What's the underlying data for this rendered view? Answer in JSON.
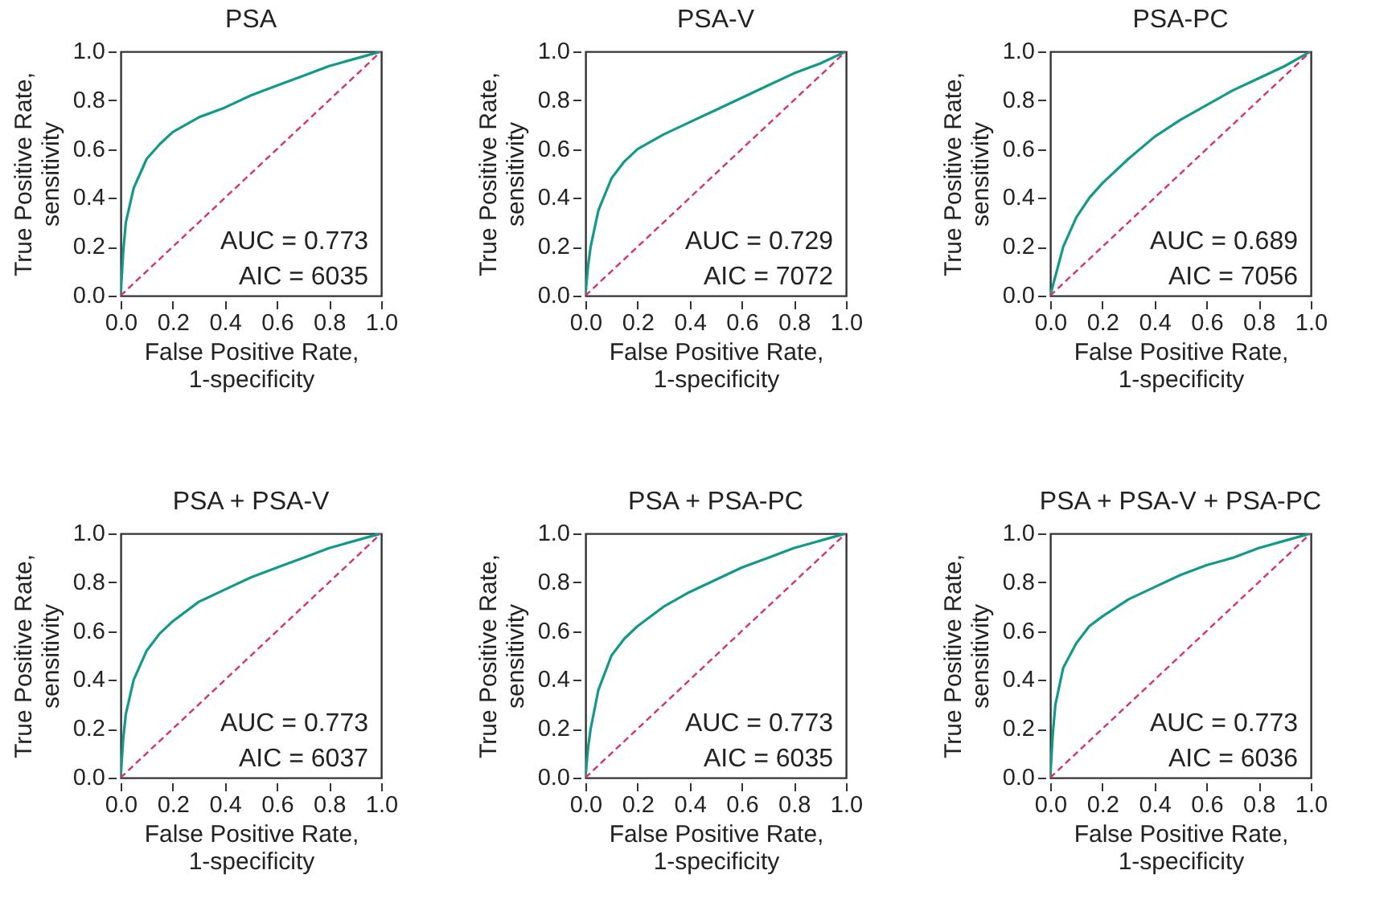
{
  "chart_data": [
    {
      "type": "line",
      "title": "PSA",
      "xlabel": "False Positive Rate,\n1-specificity",
      "ylabel": "True Positive Rate,\nsensitivity",
      "xlim": [
        0,
        1
      ],
      "ylim": [
        0,
        1
      ],
      "xticks": [
        {
          "value": 0,
          "label": "0.0"
        },
        {
          "value": 0.2,
          "label": "0.2"
        },
        {
          "value": 0.4,
          "label": "0.4"
        },
        {
          "value": 0.6,
          "label": "0.6"
        },
        {
          "value": 0.8,
          "label": "0.8"
        },
        {
          "value": 1,
          "label": "1.0"
        }
      ],
      "yticks": [
        {
          "value": 0,
          "label": "0.0"
        },
        {
          "value": 0.2,
          "label": "0.2"
        },
        {
          "value": 0.4,
          "label": "0.4"
        },
        {
          "value": 0.6,
          "label": "0.6"
        },
        {
          "value": 0.8,
          "label": "0.8"
        },
        {
          "value": 1,
          "label": "1.0"
        }
      ],
      "series": [
        {
          "type": "line",
          "color": "#13998a",
          "x": [
            0,
            0.01,
            0.02,
            0.05,
            0.1,
            0.15,
            0.2,
            0.3,
            0.4,
            0.5,
            0.6,
            0.7,
            0.8,
            0.9,
            1
          ],
          "values": [
            0,
            0.18,
            0.3,
            0.44,
            0.56,
            0.62,
            0.67,
            0.73,
            0.77,
            0.82,
            0.86,
            0.9,
            0.94,
            0.97,
            1
          ]
        },
        {
          "type": "line",
          "color": "#d6336c",
          "line_style": "dashed",
          "x": [
            0,
            1
          ],
          "values": [
            0,
            1
          ]
        }
      ],
      "annotations": [
        "AUC = 0.773",
        "AIC = 6035"
      ]
    },
    {
      "type": "line",
      "title": "PSA-V",
      "xlabel": "False Positive Rate,\n1-specificity",
      "ylabel": "True Positive Rate,\nsensitivity",
      "xlim": [
        0,
        1
      ],
      "ylim": [
        0,
        1
      ],
      "xticks": [
        {
          "value": 0,
          "label": "0.0"
        },
        {
          "value": 0.2,
          "label": "0.2"
        },
        {
          "value": 0.4,
          "label": "0.4"
        },
        {
          "value": 0.6,
          "label": "0.6"
        },
        {
          "value": 0.8,
          "label": "0.8"
        },
        {
          "value": 1,
          "label": "1.0"
        }
      ],
      "yticks": [
        {
          "value": 0,
          "label": "0.0"
        },
        {
          "value": 0.2,
          "label": "0.2"
        },
        {
          "value": 0.4,
          "label": "0.4"
        },
        {
          "value": 0.6,
          "label": "0.6"
        },
        {
          "value": 0.8,
          "label": "0.8"
        },
        {
          "value": 1,
          "label": "1.0"
        }
      ],
      "series": [
        {
          "type": "line",
          "color": "#13998a",
          "x": [
            0,
            0.01,
            0.02,
            0.05,
            0.1,
            0.15,
            0.2,
            0.3,
            0.4,
            0.5,
            0.6,
            0.7,
            0.8,
            0.9,
            1
          ],
          "values": [
            0,
            0.12,
            0.2,
            0.35,
            0.48,
            0.55,
            0.6,
            0.66,
            0.71,
            0.76,
            0.81,
            0.86,
            0.91,
            0.95,
            1
          ]
        },
        {
          "type": "line",
          "color": "#d6336c",
          "line_style": "dashed",
          "x": [
            0,
            1
          ],
          "values": [
            0,
            1
          ]
        }
      ],
      "annotations": [
        "AUC = 0.729",
        "AIC = 7072"
      ]
    },
    {
      "type": "line",
      "title": "PSA-PC",
      "xlabel": "False Positive Rate,\n1-specificity",
      "ylabel": "True Positive Rate,\nsensitivity",
      "xlim": [
        0,
        1
      ],
      "ylim": [
        0,
        1
      ],
      "xticks": [
        {
          "value": 0,
          "label": "0.0"
        },
        {
          "value": 0.2,
          "label": "0.2"
        },
        {
          "value": 0.4,
          "label": "0.4"
        },
        {
          "value": 0.6,
          "label": "0.6"
        },
        {
          "value": 0.8,
          "label": "0.8"
        },
        {
          "value": 1,
          "label": "1.0"
        }
      ],
      "yticks": [
        {
          "value": 0,
          "label": "0.0"
        },
        {
          "value": 0.2,
          "label": "0.2"
        },
        {
          "value": 0.4,
          "label": "0.4"
        },
        {
          "value": 0.6,
          "label": "0.6"
        },
        {
          "value": 0.8,
          "label": "0.8"
        },
        {
          "value": 1,
          "label": "1.0"
        }
      ],
      "series": [
        {
          "type": "line",
          "color": "#13998a",
          "x": [
            0,
            0.05,
            0.1,
            0.15,
            0.2,
            0.3,
            0.4,
            0.5,
            0.6,
            0.7,
            0.8,
            0.9,
            1
          ],
          "values": [
            0,
            0.2,
            0.32,
            0.4,
            0.46,
            0.56,
            0.65,
            0.72,
            0.78,
            0.84,
            0.89,
            0.94,
            1
          ]
        },
        {
          "type": "line",
          "color": "#d6336c",
          "line_style": "dashed",
          "x": [
            0,
            1
          ],
          "values": [
            0,
            1
          ]
        }
      ],
      "annotations": [
        "AUC = 0.689",
        "AIC = 7056"
      ]
    },
    {
      "type": "line",
      "title": "PSA + PSA-V",
      "xlabel": "False Positive Rate,\n1-specificity",
      "ylabel": "True Positive Rate,\nsensitivity",
      "xlim": [
        0,
        1
      ],
      "ylim": [
        0,
        1
      ],
      "xticks": [
        {
          "value": 0,
          "label": "0.0"
        },
        {
          "value": 0.2,
          "label": "0.2"
        },
        {
          "value": 0.4,
          "label": "0.4"
        },
        {
          "value": 0.6,
          "label": "0.6"
        },
        {
          "value": 0.8,
          "label": "0.8"
        },
        {
          "value": 1,
          "label": "1.0"
        }
      ],
      "yticks": [
        {
          "value": 0,
          "label": "0.0"
        },
        {
          "value": 0.2,
          "label": "0.2"
        },
        {
          "value": 0.4,
          "label": "0.4"
        },
        {
          "value": 0.6,
          "label": "0.6"
        },
        {
          "value": 0.8,
          "label": "0.8"
        },
        {
          "value": 1,
          "label": "1.0"
        }
      ],
      "series": [
        {
          "type": "line",
          "color": "#13998a",
          "x": [
            0,
            0.01,
            0.02,
            0.05,
            0.1,
            0.15,
            0.2,
            0.3,
            0.4,
            0.5,
            0.6,
            0.7,
            0.8,
            0.9,
            1
          ],
          "values": [
            0,
            0.16,
            0.26,
            0.4,
            0.52,
            0.59,
            0.64,
            0.72,
            0.77,
            0.82,
            0.86,
            0.9,
            0.94,
            0.97,
            1
          ]
        },
        {
          "type": "line",
          "color": "#d6336c",
          "line_style": "dashed",
          "x": [
            0,
            1
          ],
          "values": [
            0,
            1
          ]
        }
      ],
      "annotations": [
        "AUC = 0.773",
        "AIC = 6037"
      ]
    },
    {
      "type": "line",
      "title": "PSA + PSA-PC",
      "xlabel": "False Positive Rate,\n1-specificity",
      "ylabel": "True Positive Rate,\nsensitivity",
      "xlim": [
        0,
        1
      ],
      "ylim": [
        0,
        1
      ],
      "xticks": [
        {
          "value": 0,
          "label": "0.0"
        },
        {
          "value": 0.2,
          "label": "0.2"
        },
        {
          "value": 0.4,
          "label": "0.4"
        },
        {
          "value": 0.6,
          "label": "0.6"
        },
        {
          "value": 0.8,
          "label": "0.8"
        },
        {
          "value": 1,
          "label": "1.0"
        }
      ],
      "yticks": [
        {
          "value": 0,
          "label": "0.0"
        },
        {
          "value": 0.2,
          "label": "0.2"
        },
        {
          "value": 0.4,
          "label": "0.4"
        },
        {
          "value": 0.6,
          "label": "0.6"
        },
        {
          "value": 0.8,
          "label": "0.8"
        },
        {
          "value": 1,
          "label": "1.0"
        }
      ],
      "series": [
        {
          "type": "line",
          "color": "#13998a",
          "x": [
            0,
            0.01,
            0.02,
            0.05,
            0.1,
            0.15,
            0.2,
            0.3,
            0.4,
            0.5,
            0.6,
            0.7,
            0.8,
            0.9,
            1
          ],
          "values": [
            0,
            0.12,
            0.2,
            0.36,
            0.5,
            0.57,
            0.62,
            0.7,
            0.76,
            0.81,
            0.86,
            0.9,
            0.94,
            0.97,
            1
          ]
        },
        {
          "type": "line",
          "color": "#d6336c",
          "line_style": "dashed",
          "x": [
            0,
            1
          ],
          "values": [
            0,
            1
          ]
        }
      ],
      "annotations": [
        "AUC = 0.773",
        "AIC = 6035"
      ]
    },
    {
      "type": "line",
      "title": "PSA + PSA-V + PSA-PC",
      "xlabel": "False Positive Rate,\n1-specificity",
      "ylabel": "True Positive Rate,\nsensitivity",
      "xlim": [
        0,
        1
      ],
      "ylim": [
        0,
        1
      ],
      "xticks": [
        {
          "value": 0,
          "label": "0.0"
        },
        {
          "value": 0.2,
          "label": "0.2"
        },
        {
          "value": 0.4,
          "label": "0.4"
        },
        {
          "value": 0.6,
          "label": "0.6"
        },
        {
          "value": 0.8,
          "label": "0.8"
        },
        {
          "value": 1,
          "label": "1.0"
        }
      ],
      "yticks": [
        {
          "value": 0,
          "label": "0.0"
        },
        {
          "value": 0.2,
          "label": "0.2"
        },
        {
          "value": 0.4,
          "label": "0.4"
        },
        {
          "value": 0.6,
          "label": "0.6"
        },
        {
          "value": 0.8,
          "label": "0.8"
        },
        {
          "value": 1,
          "label": "1.0"
        }
      ],
      "series": [
        {
          "type": "line",
          "color": "#13998a",
          "x": [
            0,
            0.01,
            0.02,
            0.05,
            0.1,
            0.15,
            0.2,
            0.3,
            0.4,
            0.5,
            0.6,
            0.7,
            0.8,
            0.9,
            1
          ],
          "values": [
            0,
            0.18,
            0.3,
            0.45,
            0.55,
            0.62,
            0.66,
            0.73,
            0.78,
            0.83,
            0.87,
            0.9,
            0.94,
            0.97,
            1
          ]
        },
        {
          "type": "line",
          "color": "#d6336c",
          "line_style": "dashed",
          "x": [
            0,
            1
          ],
          "values": [
            0,
            1
          ]
        }
      ],
      "annotations": [
        "AUC = 0.773",
        "AIC = 6036"
      ]
    }
  ]
}
